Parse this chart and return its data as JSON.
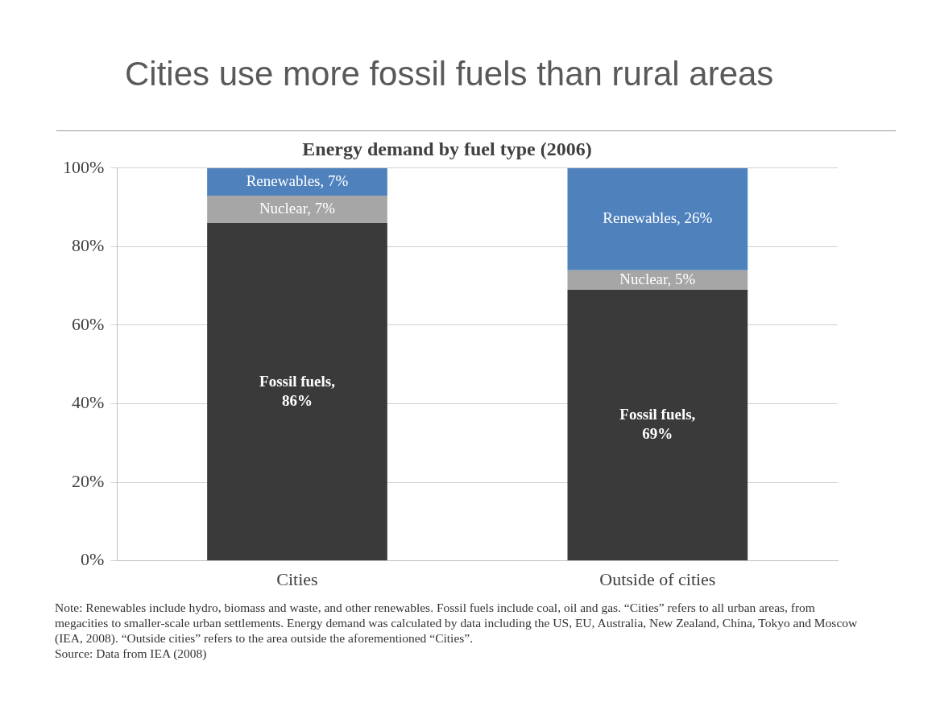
{
  "chart_data": {
    "type": "bar",
    "title": "Cities use more fossil fuels than rural areas",
    "subtitle": "Energy demand by fuel type (2006)",
    "categories": [
      "Cities",
      "Outside of cities"
    ],
    "stacked": true,
    "series": [
      {
        "color": "#3a3a3a",
        "values": [
          86,
          69
        ],
        "value_labels": [
          "Fossil fuels, 86%",
          "Fossil fuels, 69%"
        ]
      },
      {
        "color": "#a6a6a6",
        "values": [
          7,
          5
        ],
        "value_labels": [
          "Nuclear, 7%",
          "Nuclear, 5%"
        ]
      },
      {
        "color": "#4f81bd",
        "values": [
          7,
          26
        ],
        "value_labels": [
          "Renewables, 7%",
          "Renewables, 26%"
        ]
      }
    ],
    "ylim": [
      0,
      100
    ],
    "yticks": [
      {
        "value": 0,
        "label": "0%"
      },
      {
        "value": 20,
        "label": "20%"
      },
      {
        "value": 40,
        "label": "40%"
      },
      {
        "value": 60,
        "label": "60%"
      },
      {
        "value": 80,
        "label": "80%"
      },
      {
        "value": 100,
        "label": "100%"
      }
    ],
    "grid": "y",
    "legend": false,
    "annotations": [
      "Note: Renewables include hydro, biomass and waste, and other renewables. Fossil fuels include coal, oil and gas. “Cities” refers to all urban areas, from megacities to smaller-scale urban settlements. Energy demand was calculated by data including the US, EU, Australia, New Zealand, China, Tokyo and Moscow (IEA, 2008). “Outside cities” refers to the area outside the aforementioned “Cities”.",
      "Source: Data from IEA (2008)"
    ]
  }
}
